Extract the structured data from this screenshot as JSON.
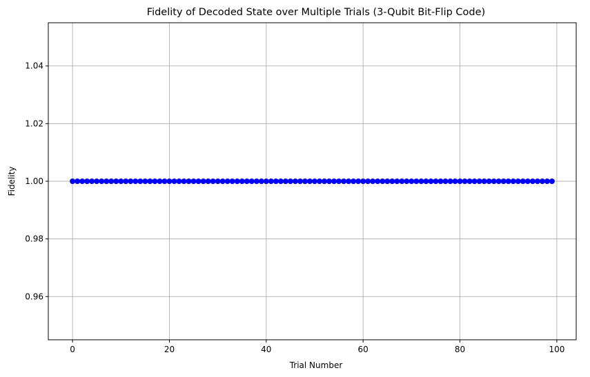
{
  "chart_data": {
    "type": "line",
    "title": "Fidelity of Decoded State over Multiple Trials (3-Qubit Bit-Flip Code)",
    "xlabel": "Trial Number",
    "ylabel": "Fidelity",
    "xlim": [
      -5,
      104
    ],
    "ylim": [
      0.945,
      1.055
    ],
    "x_ticks": [
      0,
      20,
      40,
      60,
      80,
      100
    ],
    "y_ticks": [
      0.96,
      0.98,
      1.0,
      1.02,
      1.04
    ],
    "x_tick_labels": [
      "0",
      "20",
      "40",
      "60",
      "80",
      "100"
    ],
    "y_tick_labels": [
      "0.96",
      "0.98",
      "1.00",
      "1.02",
      "1.04"
    ],
    "grid": true,
    "marker": "circle",
    "series": [
      {
        "color": "#0000ff",
        "x": [
          0,
          1,
          2,
          3,
          4,
          5,
          6,
          7,
          8,
          9,
          10,
          11,
          12,
          13,
          14,
          15,
          16,
          17,
          18,
          19,
          20,
          21,
          22,
          23,
          24,
          25,
          26,
          27,
          28,
          29,
          30,
          31,
          32,
          33,
          34,
          35,
          36,
          37,
          38,
          39,
          40,
          41,
          42,
          43,
          44,
          45,
          46,
          47,
          48,
          49,
          50,
          51,
          52,
          53,
          54,
          55,
          56,
          57,
          58,
          59,
          60,
          61,
          62,
          63,
          64,
          65,
          66,
          67,
          68,
          69,
          70,
          71,
          72,
          73,
          74,
          75,
          76,
          77,
          78,
          79,
          80,
          81,
          82,
          83,
          84,
          85,
          86,
          87,
          88,
          89,
          90,
          91,
          92,
          93,
          94,
          95,
          96,
          97,
          98,
          99
        ],
        "y": [
          1,
          1,
          1,
          1,
          1,
          1,
          1,
          1,
          1,
          1,
          1,
          1,
          1,
          1,
          1,
          1,
          1,
          1,
          1,
          1,
          1,
          1,
          1,
          1,
          1,
          1,
          1,
          1,
          1,
          1,
          1,
          1,
          1,
          1,
          1,
          1,
          1,
          1,
          1,
          1,
          1,
          1,
          1,
          1,
          1,
          1,
          1,
          1,
          1,
          1,
          1,
          1,
          1,
          1,
          1,
          1,
          1,
          1,
          1,
          1,
          1,
          1,
          1,
          1,
          1,
          1,
          1,
          1,
          1,
          1,
          1,
          1,
          1,
          1,
          1,
          1,
          1,
          1,
          1,
          1,
          1,
          1,
          1,
          1,
          1,
          1,
          1,
          1,
          1,
          1,
          1,
          1,
          1,
          1,
          1,
          1,
          1,
          1,
          1,
          1
        ]
      }
    ]
  }
}
